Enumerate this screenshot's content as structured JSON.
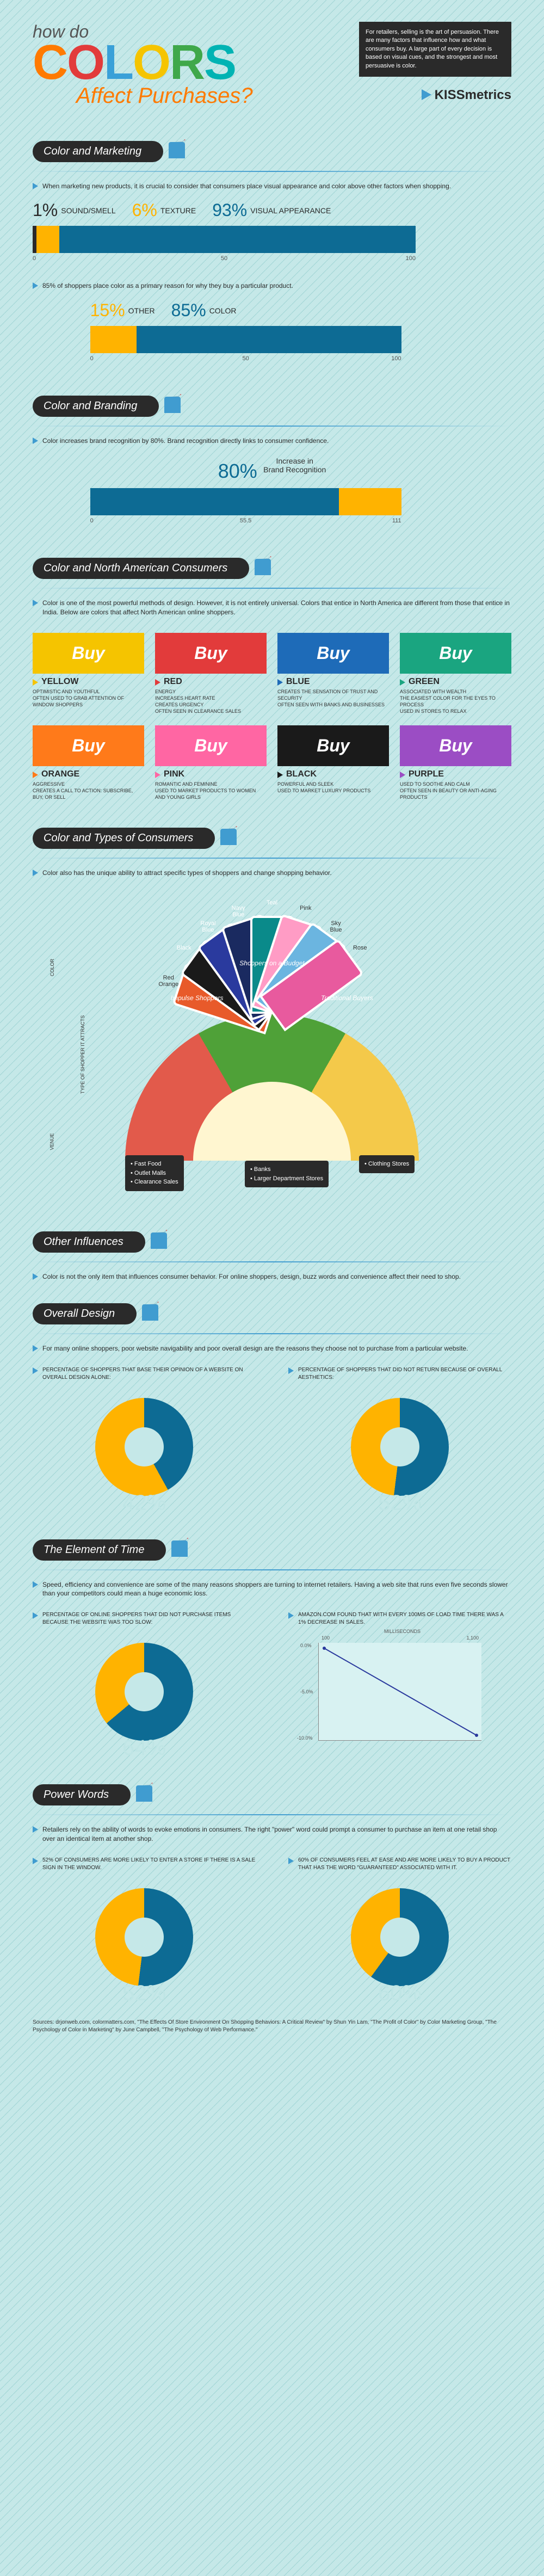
{
  "header": {
    "how_do": "how do",
    "colors_letters": [
      {
        "ch": "C",
        "color": "#ff7a00"
      },
      {
        "ch": "O",
        "color": "#e23b3b"
      },
      {
        "ch": "L",
        "color": "#3aa0d8"
      },
      {
        "ch": "O",
        "color": "#f5c400"
      },
      {
        "ch": "R",
        "color": "#3fa84a"
      },
      {
        "ch": "S",
        "color": "#00b3b3"
      }
    ],
    "affect": "Affect Purchases?",
    "blurb": "For retailers, selling is the art of persuasion. There are many factors that influence how and what consumers buy. A large part of every decision is based on visual cues, and the strongest and most persuasive is color.",
    "brand": "KISSmetrics"
  },
  "s1": {
    "title": "Color and Marketing",
    "desc": "When marketing new products, it is crucial to consider that consumers place visual appearance and color above other factors when shopping.",
    "bar1": {
      "labels": [
        {
          "pct": "1%",
          "txt": "SOUND/SMELL",
          "color": "#2a2a2a"
        },
        {
          "pct": "6%",
          "txt": "TEXTURE",
          "color": "#ffb300"
        },
        {
          "pct": "93%",
          "txt": "VISUAL APPEARANCE",
          "color": "#0d6b94"
        }
      ],
      "segments": [
        {
          "w": 1,
          "c": "#2a2a2a"
        },
        {
          "w": 6,
          "c": "#ffb300"
        },
        {
          "w": 93,
          "c": "#0d6b94"
        }
      ],
      "axis": [
        "0",
        "50",
        "100"
      ]
    },
    "mid_desc": "85% of shoppers place color as a primary reason for why they buy a particular product.",
    "bar2": {
      "labels": [
        {
          "pct": "15%",
          "txt": "OTHER",
          "color": "#ffb300"
        },
        {
          "pct": "85%",
          "txt": "COLOR",
          "color": "#0d6b94"
        }
      ],
      "segments": [
        {
          "w": 15,
          "c": "#ffb300"
        },
        {
          "w": 85,
          "c": "#0d6b94"
        }
      ],
      "axis": [
        "0",
        "50",
        "100"
      ]
    }
  },
  "s2": {
    "title": "Color and Branding",
    "desc": "Color increases brand recognition by 80%. Brand recognition directly links to consumer confidence.",
    "stat": "80%",
    "stat_label": "Increase in\nBrand Recognition",
    "bar": {
      "segments": [
        {
          "w": 80,
          "c": "#0d6b94"
        },
        {
          "w": 20,
          "c": "#ffb300"
        }
      ],
      "axis": [
        "0",
        "55.5",
        "111"
      ]
    }
  },
  "s3": {
    "title": "Color and North American Consumers",
    "desc": "Color is one of the most powerful methods of design. However, it is not entirely universal. Colors that entice in North America are different from those that entice in India. Below are colors that affect North American online shoppers.",
    "buy": "Buy",
    "colors": [
      {
        "name": "YELLOW",
        "bg": "#f5c400",
        "bullet": "#f5c400",
        "desc": "OPTIMISTIC AND YOUTHFUL\nOFTEN USED TO GRAB ATTENTION OF WINDOW SHOPPERS"
      },
      {
        "name": "RED",
        "bg": "#e23b3b",
        "bullet": "#e23b3b",
        "desc": "ENERGY\nINCREASES HEART RATE\nCREATES URGENCY\nOFTEN SEEN IN CLEARANCE SALES"
      },
      {
        "name": "BLUE",
        "bg": "#1e6bb8",
        "bullet": "#1e6bb8",
        "desc": "CREATES THE SENSATION OF TRUST AND SECURITY\nOFTEN SEEN WITH BANKS AND BUSINESSES"
      },
      {
        "name": "GREEN",
        "bg": "#1aa580",
        "bullet": "#1aa580",
        "desc": "ASSOCIATED WITH WEALTH\nTHE EASIEST COLOR FOR THE EYES TO PROCESS\nUSED IN STORES TO RELAX"
      },
      {
        "name": "ORANGE",
        "bg": "#ff7a1a",
        "bullet": "#ff7a1a",
        "desc": "AGGRESSIVE\nCREATES A CALL TO ACTION: SUBSCRIBE, BUY, OR SELL"
      },
      {
        "name": "PINK",
        "bg": "#ff66a3",
        "bullet": "#ff66a3",
        "desc": "ROMANTIC AND FEMININE\nUSED TO MARKET PRODUCTS TO WOMEN AND YOUNG GIRLS"
      },
      {
        "name": "BLACK",
        "bg": "#1a1a1a",
        "bullet": "#1a1a1a",
        "desc": "POWERFUL AND SLEEK\nUSED TO MARKET LUXURY PRODUCTS"
      },
      {
        "name": "PURPLE",
        "bg": "#9b4dc4",
        "bullet": "#9b4dc4",
        "desc": "USED TO SOOTHE AND CALM\nOFTEN SEEN IN BEAUTY OR ANTI-AGING PRODUCTS"
      }
    ]
  },
  "s4": {
    "title": "Color and Types of Consumers",
    "desc": "Color also has the unique ability to attract specific types of shoppers and change shopping behavior.",
    "fan": [
      {
        "c": "#e85a2a",
        "label": "Red\nOrange",
        "angle": -72
      },
      {
        "c": "#1a1a1a",
        "label": "Black",
        "angle": -54
      },
      {
        "c": "#2a3a9e",
        "label": "Royal\nBlue",
        "angle": -36
      },
      {
        "c": "#1a2a60",
        "label": "Navy\nBlue",
        "angle": -18
      },
      {
        "c": "#0a8a8a",
        "label": "Teal",
        "angle": 0
      },
      {
        "c": "#ff9cc5",
        "label": "Pink",
        "angle": 18
      },
      {
        "c": "#6bb5e0",
        "label": "Sky\nBlue",
        "angle": 36
      },
      {
        "c": "#e85a9e",
        "label": "Rose",
        "angle": 54
      }
    ],
    "shopper_types": [
      {
        "txt": "Impulse Shoppers"
      },
      {
        "txt": "Shoppers on a Budget"
      },
      {
        "txt": "Traditional Buyers"
      }
    ],
    "venues": [
      {
        "items": [
          "Fast Food",
          "Outlet Malls",
          "Clearance Sales"
        ]
      },
      {
        "items": [
          "Banks",
          "Larger Department Stores"
        ]
      },
      {
        "items": [
          "Clothing Stores"
        ]
      }
    ],
    "side_labels": [
      "COLOR",
      "TYPE OF SHOPPER IT ATTRACTS",
      "VENUE"
    ]
  },
  "s5": {
    "title": "Other Influences",
    "desc": "Color is not the only item that influences consumer behavior. For online shoppers, design, buzz words and convenience affect their need to shop."
  },
  "s6": {
    "title": "Overall Design",
    "desc": "For many online shoppers, poor website navigability and poor overall design are the reasons they choose not to purchase from a particular website.",
    "left_lbl": "PERCENTAGE OF SHOPPERS THAT BASE THEIR OPINION OF A WEBSITE ON OVERALL DESIGN ALONE:",
    "right_lbl": "PERCENTAGE OF SHOPPERS THAT DID NOT RETURN BECAUSE OF OVERALL AESTHETICS:",
    "left_pct": "42%",
    "left_angle": 151,
    "right_pct": "52%",
    "right_angle": 187,
    "donut_fg": "#0d6b94",
    "donut_bg": "#ffb300",
    "pct_color": "#bfe5e5"
  },
  "s7": {
    "title": "The Element of Time",
    "desc": "Speed, efficiency and convenience are some of the many reasons shoppers are turning to internet retailers. Having a web site that runs even five seconds slower than your competitors could mean a huge economic loss.",
    "left_lbl": "PERCENTAGE OF ONLINE SHOPPERS THAT DID NOT PURCHASE ITEMS BECAUSE THE WEBSITE WAS TOO SLOW:",
    "right_lbl": "AMAZON.COM FOUND THAT WITH EVERY 100MS OF LOAD TIME THERE WAS A 1% DECREASE IN SALES.",
    "left_pct": "64%",
    "left_angle": 230,
    "chart": {
      "x_label": "MILLISECONDS",
      "x_ticks": [
        "100",
        "1,100"
      ],
      "y_ticks": [
        "0.0%",
        "-5.0%",
        "-10.0%"
      ],
      "line_color": "#2a3a9e"
    }
  },
  "s8": {
    "title": "Power Words",
    "desc": "Retailers rely on the ability of words to evoke emotions in consumers. The right \"power\" word could prompt a consumer to purchase an item at one retail shop over an identical item at another shop.",
    "left_lbl": "52% OF CONSUMERS ARE MORE LIKELY TO ENTER A STORE IF THERE IS A SALE SIGN IN THE WINDOW.",
    "right_lbl": "60% OF CONSUMERS FEEL AT EASE AND ARE MORE LIKELY TO BUY A PRODUCT THAT HAS THE WORD \"GUARANTEED\" ASSOCIATED WITH IT.",
    "left_pct": "52%",
    "left_angle": 187,
    "right_pct": "60%",
    "right_angle": 216
  },
  "sources": "Sources: drjonweb.com, colormatters.com, \"The Effects Of Store Environment On Shopping Behaviors: A Critical Review\" by Shun Yin Lam, \"The Profit of Color\" by Color Marketing Group, \"The Psychology of Color in Marketing\" by June Campbell, \"The Psychology of Web Performance.\""
}
